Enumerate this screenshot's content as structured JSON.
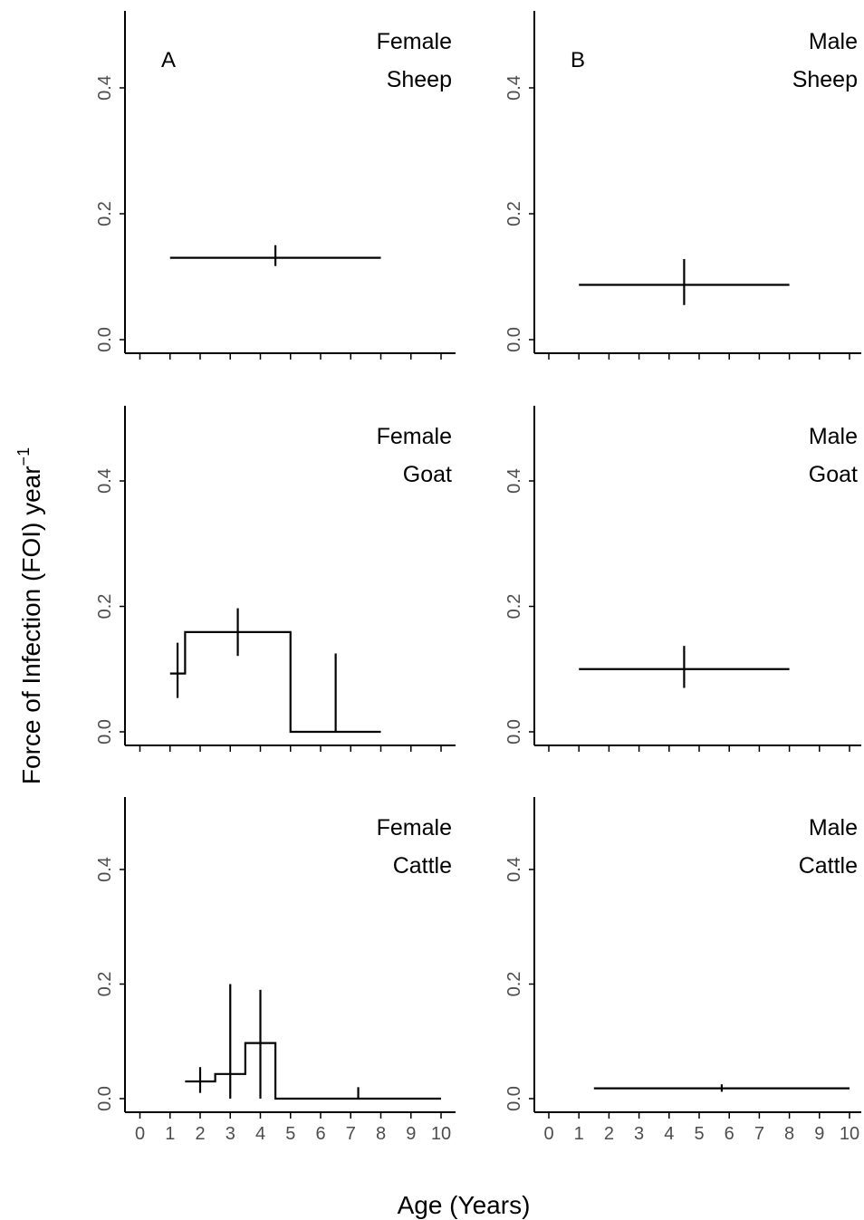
{
  "axes": {
    "xlabel": "Age (Years)",
    "ylabel_main": "Force of Infection (FOI) year",
    "ylabel_superscript": "−1"
  },
  "chart_data": [
    {
      "type": "line",
      "panel_letter": "A",
      "title_lines": [
        "Female",
        "Sheep"
      ],
      "xlim": [
        -0.5,
        10.5
      ],
      "ylim": [
        0,
        0.5
      ],
      "x_ticks": [
        0,
        1,
        2,
        3,
        4,
        5,
        6,
        7,
        8,
        9,
        10
      ],
      "y_ticks": [
        "0.0",
        "0.2",
        "0.4"
      ],
      "show_x_tick_labels": false,
      "segments": [
        {
          "x_start": 1,
          "x_end": 8,
          "foi": 0.13,
          "err_x": 4.5,
          "lower": 0.117,
          "upper": 0.15
        }
      ]
    },
    {
      "type": "line",
      "panel_letter": "B",
      "title_lines": [
        "Male",
        "Sheep"
      ],
      "xlim": [
        -0.5,
        10.5
      ],
      "ylim": [
        0,
        0.5
      ],
      "x_ticks": [
        0,
        1,
        2,
        3,
        4,
        5,
        6,
        7,
        8,
        9,
        10
      ],
      "y_ticks": [
        "0.0",
        "0.2",
        "0.4"
      ],
      "show_x_tick_labels": false,
      "segments": [
        {
          "x_start": 1,
          "x_end": 8,
          "foi": 0.087,
          "err_x": 4.5,
          "lower": 0.055,
          "upper": 0.128
        }
      ]
    },
    {
      "type": "line",
      "panel_letter": "",
      "title_lines": [
        "Female",
        "Goat"
      ],
      "xlim": [
        -0.5,
        10.5
      ],
      "ylim": [
        0,
        0.5
      ],
      "x_ticks": [
        0,
        1,
        2,
        3,
        4,
        5,
        6,
        7,
        8,
        9,
        10
      ],
      "y_ticks": [
        "0.0",
        "0.2",
        "0.4"
      ],
      "show_x_tick_labels": false,
      "segments": [
        {
          "x_start": 1,
          "x_end": 1.5,
          "foi": 0.093,
          "err_x": 1.25,
          "lower": 0.054,
          "upper": 0.142
        },
        {
          "x_start": 1.5,
          "x_end": 5,
          "foi": 0.159,
          "err_x": 3.25,
          "lower": 0.121,
          "upper": 0.197
        },
        {
          "x_start": 5,
          "x_end": 8,
          "foi": 0.0,
          "err_x": 6.5,
          "lower": 0.0,
          "upper": 0.125
        }
      ]
    },
    {
      "type": "line",
      "panel_letter": "",
      "title_lines": [
        "Male",
        "Goat"
      ],
      "xlim": [
        -0.5,
        10.5
      ],
      "ylim": [
        0,
        0.5
      ],
      "x_ticks": [
        0,
        1,
        2,
        3,
        4,
        5,
        6,
        7,
        8,
        9,
        10
      ],
      "y_ticks": [
        "0.0",
        "0.2",
        "0.4"
      ],
      "show_x_tick_labels": false,
      "segments": [
        {
          "x_start": 1,
          "x_end": 8,
          "foi": 0.1,
          "err_x": 4.5,
          "lower": 0.07,
          "upper": 0.137
        }
      ]
    },
    {
      "type": "line",
      "panel_letter": "",
      "title_lines": [
        "Female",
        "Cattle"
      ],
      "xlim": [
        -0.5,
        10.5
      ],
      "ylim": [
        0,
        0.5
      ],
      "x_ticks": [
        0,
        1,
        2,
        3,
        4,
        5,
        6,
        7,
        8,
        9,
        10
      ],
      "y_ticks": [
        "0.0",
        "0.2",
        "0.4"
      ],
      "show_x_tick_labels": true,
      "segments": [
        {
          "x_start": 1.5,
          "x_end": 2.5,
          "foi": 0.03,
          "err_x": 2,
          "lower": 0.01,
          "upper": 0.055
        },
        {
          "x_start": 2.5,
          "x_end": 3.5,
          "foi": 0.043,
          "err_x": 3,
          "lower": 0.0,
          "upper": 0.2
        },
        {
          "x_start": 3.5,
          "x_end": 4.5,
          "foi": 0.097,
          "err_x": 4,
          "lower": 0.0,
          "upper": 0.19
        },
        {
          "x_start": 4.5,
          "x_end": 10,
          "foi": 0.0,
          "err_x": 7.25,
          "lower": 0.0,
          "upper": 0.02
        }
      ]
    },
    {
      "type": "line",
      "panel_letter": "",
      "title_lines": [
        "Male",
        "Cattle"
      ],
      "xlim": [
        -0.5,
        10.5
      ],
      "ylim": [
        0,
        0.5
      ],
      "x_ticks": [
        0,
        1,
        2,
        3,
        4,
        5,
        6,
        7,
        8,
        9,
        10
      ],
      "y_ticks": [
        "0.0",
        "0.2",
        "0.4"
      ],
      "show_x_tick_labels": true,
      "segments": [
        {
          "x_start": 1.5,
          "x_end": 10,
          "foi": 0.018,
          "err_x": 5.75,
          "lower": 0.012,
          "upper": 0.025
        }
      ]
    }
  ]
}
